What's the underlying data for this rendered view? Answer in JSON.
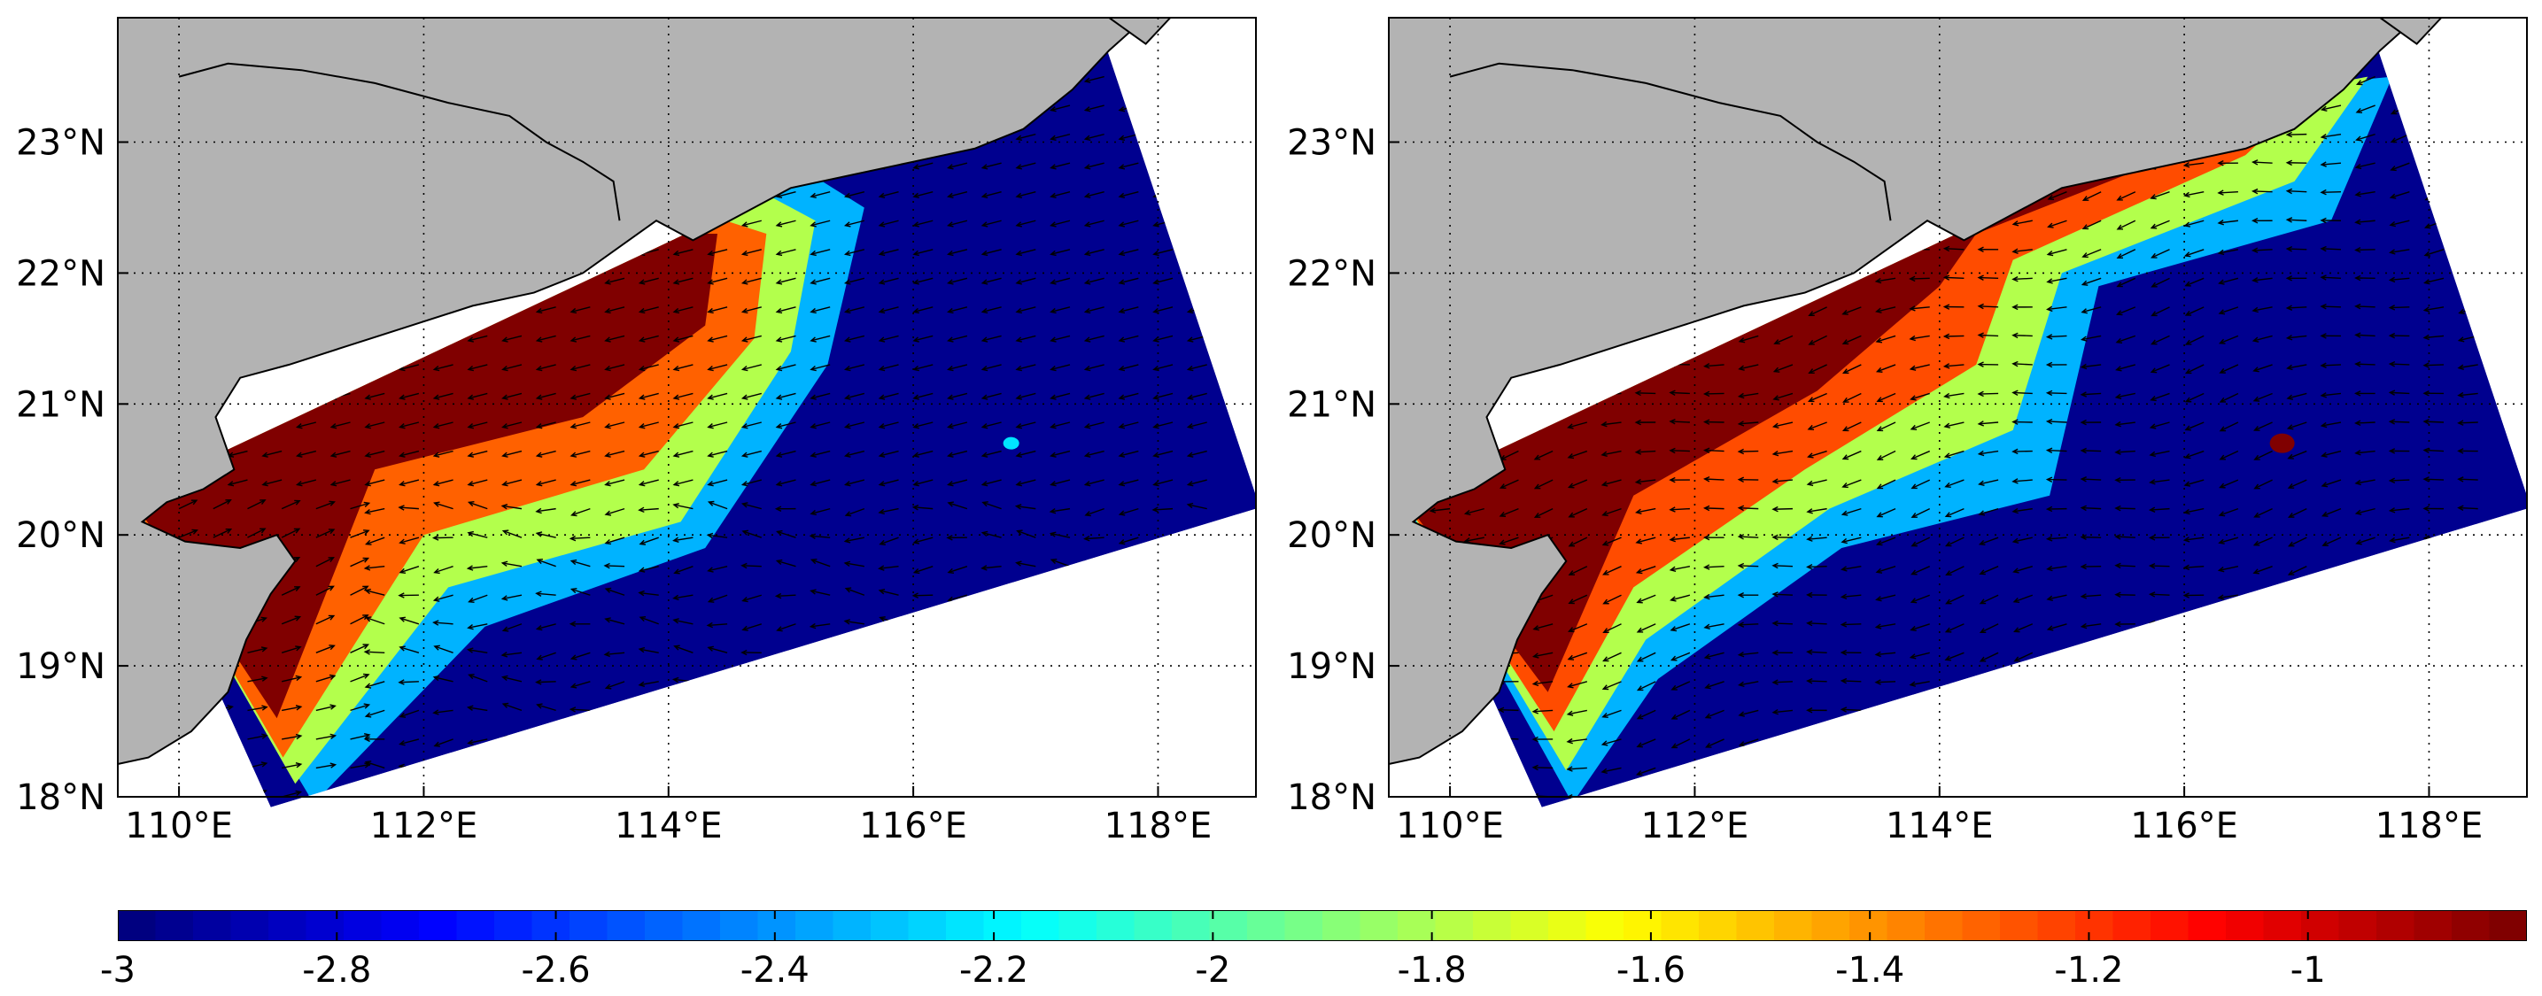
{
  "map": {
    "panels": [
      {
        "id": "left",
        "lon_ticks": [
          {
            "lon": 110,
            "label": "110°E"
          },
          {
            "lon": 112,
            "label": "112°E"
          },
          {
            "lon": 114,
            "label": "114°E"
          },
          {
            "lon": 116,
            "label": "116°E"
          },
          {
            "lon": 118,
            "label": "118°E"
          }
        ],
        "lat_ticks": [
          {
            "lat": 18,
            "label": "18°N"
          },
          {
            "lat": 19,
            "label": "19°N"
          },
          {
            "lat": 20,
            "label": "20°N"
          },
          {
            "lat": 21,
            "label": "21°N"
          },
          {
            "lat": 22,
            "label": "22°N"
          },
          {
            "lat": 23,
            "label": "23°N"
          }
        ]
      },
      {
        "id": "right",
        "lon_ticks": [
          {
            "lon": 110,
            "label": "110°E"
          },
          {
            "lon": 112,
            "label": "112°E"
          },
          {
            "lon": 114,
            "label": "114°E"
          },
          {
            "lon": 116,
            "label": "116°E"
          },
          {
            "lon": 118,
            "label": "118°E"
          }
        ],
        "lat_ticks": [
          {
            "lat": 18,
            "label": "18°N"
          },
          {
            "lat": 19,
            "label": "19°N"
          },
          {
            "lat": 20,
            "label": "20°N"
          },
          {
            "lat": 21,
            "label": "21°N"
          },
          {
            "lat": 22,
            "label": "22°N"
          },
          {
            "lat": 23,
            "label": "23°N"
          }
        ]
      }
    ],
    "extent": {
      "lon_min": 109.5,
      "lon_max": 118.8,
      "lat_min": 18.0,
      "lat_max": 23.95
    },
    "colors": {
      "land": "#b3b3b3",
      "coast": "#000000",
      "low": "#00008f",
      "high": "#800000"
    },
    "colorbar": {
      "min": -3,
      "max": -0.8,
      "ticks": [
        {
          "value": -3,
          "label": "-3"
        },
        {
          "value": -2.8,
          "label": "-2.8"
        },
        {
          "value": -2.6,
          "label": "-2.6"
        },
        {
          "value": -2.4,
          "label": "-2.4"
        },
        {
          "value": -2.2,
          "label": "-2.2"
        },
        {
          "value": -2,
          "label": "-2"
        },
        {
          "value": -1.8,
          "label": "-1.8"
        },
        {
          "value": -1.6,
          "label": "-1.6"
        },
        {
          "value": -1.4,
          "label": "-1.4"
        },
        {
          "value": -1.2,
          "label": "-1.2"
        },
        {
          "value": -1,
          "label": "-1"
        }
      ]
    }
  }
}
